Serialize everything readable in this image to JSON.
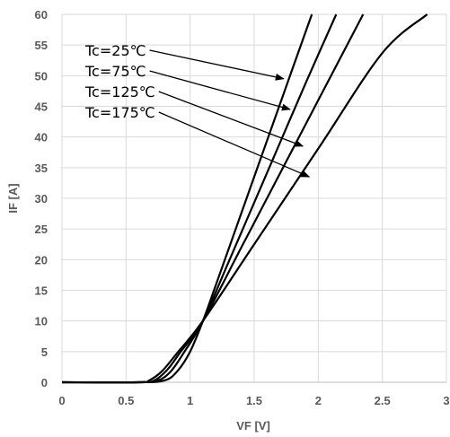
{
  "chart_data": {
    "type": "line",
    "xlabel": "VF  [V]",
    "ylabel": "IF  [A]",
    "xlim": [
      0,
      3
    ],
    "ylim": [
      0,
      60
    ],
    "x_ticks": [
      "0",
      "0.5",
      "1",
      "1.5",
      "2",
      "2.5",
      "3"
    ],
    "y_ticks": [
      "0",
      "5",
      "10",
      "15",
      "20",
      "25",
      "30",
      "35",
      "40",
      "45",
      "50",
      "55",
      "60"
    ],
    "grid": true,
    "series": [
      {
        "name": "Tc=25℃",
        "points": [
          [
            0,
            0
          ],
          [
            0.6,
            0
          ],
          [
            0.8,
            0.3
          ],
          [
            0.9,
            1.8
          ],
          [
            1.0,
            5.0
          ],
          [
            1.1,
            10.0
          ],
          [
            1.2,
            15.8
          ],
          [
            1.4,
            27.6
          ],
          [
            1.6,
            39.4
          ],
          [
            1.8,
            51.2
          ],
          [
            1.95,
            60
          ]
        ]
      },
      {
        "name": "Tc=75℃",
        "points": [
          [
            0,
            0
          ],
          [
            0.6,
            0
          ],
          [
            0.75,
            0.3
          ],
          [
            0.85,
            1.8
          ],
          [
            0.95,
            4.8
          ],
          [
            1.1,
            10.0
          ],
          [
            1.3,
            19.6
          ],
          [
            1.5,
            29.3
          ],
          [
            1.7,
            39.0
          ],
          [
            1.9,
            48.7
          ],
          [
            2.14,
            60
          ]
        ]
      },
      {
        "name": "Tc=125℃",
        "points": [
          [
            0,
            0
          ],
          [
            0.6,
            0
          ],
          [
            0.72,
            0.3
          ],
          [
            0.82,
            2.0
          ],
          [
            0.92,
            4.8
          ],
          [
            1.1,
            10.0
          ],
          [
            1.4,
            22.0
          ],
          [
            1.7,
            34.0
          ],
          [
            2.0,
            46.0
          ],
          [
            2.35,
            60
          ]
        ]
      },
      {
        "name": "Tc=175℃",
        "points": [
          [
            0,
            0
          ],
          [
            0.6,
            0
          ],
          [
            0.68,
            0.3
          ],
          [
            0.78,
            1.8
          ],
          [
            0.9,
            4.8
          ],
          [
            1.1,
            10.0
          ],
          [
            1.5,
            22.5
          ],
          [
            2.0,
            38.1
          ],
          [
            2.5,
            53.7
          ],
          [
            2.85,
            60
          ]
        ]
      }
    ],
    "annotations": [
      {
        "text": "Tc=25℃",
        "arrow_to": [
          1.73,
          49.5
        ]
      },
      {
        "text": "Tc=75℃",
        "arrow_to": [
          1.78,
          44.5
        ]
      },
      {
        "text": "Tc=125℃",
        "arrow_to": [
          1.88,
          38.5
        ]
      },
      {
        "text": "Tc=175℃",
        "arrow_to": [
          1.93,
          33.5
        ]
      }
    ],
    "colors": {
      "series": "#000000",
      "grid": "#d9d9d9",
      "text": "#595959"
    }
  }
}
